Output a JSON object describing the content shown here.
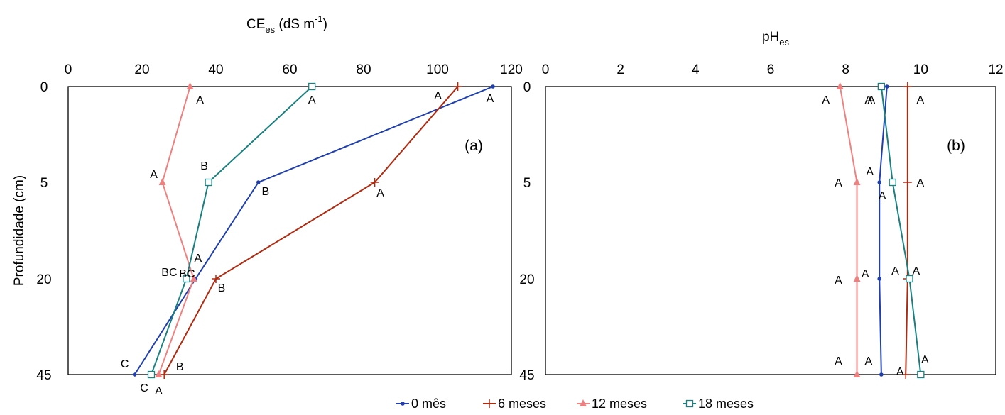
{
  "chart_data": [
    {
      "type": "line",
      "panel_label": "(a)",
      "title": "CE",
      "title_sub": "es",
      "title_unit": " (dS m",
      "title_sup": "-1",
      "title_close": ")",
      "ylabel": "Profundidade (cm)",
      "xlim": [
        0,
        120
      ],
      "xticks": [
        "0",
        "20",
        "40",
        "60",
        "80",
        "100",
        "120"
      ],
      "ylim": [
        0,
        45
      ],
      "yticks": [
        "0",
        "5",
        "20",
        "45"
      ],
      "y_positions": [
        0,
        5,
        20,
        45
      ],
      "orientation": "depth-profile",
      "series": [
        {
          "name": "0 mês",
          "color": "#1f3fb0",
          "marker": "dot",
          "x": [
            115,
            51.5,
            34.5,
            18
          ],
          "y": [
            0,
            5,
            20,
            45
          ],
          "labels": [
            "A",
            "B",
            "BC",
            "C"
          ]
        },
        {
          "name": "6 meses",
          "color": "#b02a10",
          "marker": "plus",
          "x": [
            105.5,
            83,
            40,
            26
          ],
          "y": [
            0,
            5,
            20,
            45
          ],
          "labels": [
            "A",
            "A",
            "B",
            "B"
          ]
        },
        {
          "name": "12 meses",
          "color": "#f08080",
          "marker": "triangle",
          "x": [
            33,
            25.5,
            34,
            24.5
          ],
          "y": [
            0,
            5,
            20,
            45
          ],
          "labels": [
            "A",
            "A",
            "A",
            "A"
          ]
        },
        {
          "name": "18 meses",
          "color": "#1a8080",
          "marker": "square",
          "x": [
            66,
            38,
            32,
            22.5
          ],
          "y": [
            0,
            5,
            20,
            45
          ],
          "labels": [
            "A",
            "B",
            "BC",
            "C"
          ]
        }
      ]
    },
    {
      "type": "line",
      "panel_label": "(b)",
      "title": "pH",
      "title_sub": "es",
      "xlim": [
        0,
        12
      ],
      "xticks": [
        "0",
        "2",
        "4",
        "6",
        "8",
        "10",
        "12"
      ],
      "ylim": [
        0,
        45
      ],
      "yticks": [
        "0",
        "5",
        "20",
        "45"
      ],
      "y_positions": [
        0,
        5,
        20,
        45
      ],
      "orientation": "depth-profile",
      "series": [
        {
          "name": "0 mês",
          "color": "#1f3fb0",
          "marker": "dot",
          "x": [
            9.1,
            8.9,
            8.9,
            8.95
          ],
          "y": [
            0,
            5,
            20,
            45
          ],
          "labels": [
            "A",
            "A",
            "A",
            "A"
          ]
        },
        {
          "name": "6 meses",
          "color": "#b02a10",
          "marker": "plus",
          "x": [
            9.65,
            9.65,
            9.65,
            9.6
          ],
          "y": [
            0,
            5,
            20,
            45
          ],
          "labels": [
            "A",
            "A",
            "A",
            "A"
          ]
        },
        {
          "name": "12 meses",
          "color": "#f08080",
          "marker": "triangle",
          "x": [
            7.85,
            8.3,
            8.3,
            8.3
          ],
          "y": [
            0,
            5,
            20,
            45
          ],
          "labels": [
            "A",
            "A",
            "A",
            "A"
          ]
        },
        {
          "name": "18 meses",
          "color": "#1a8080",
          "marker": "square",
          "x": [
            8.95,
            9.25,
            9.7,
            10.0
          ],
          "y": [
            0,
            5,
            20,
            45
          ],
          "labels": [
            "A",
            "A",
            "A",
            "A"
          ]
        }
      ]
    }
  ],
  "legend": [
    {
      "label": "0 mês",
      "color": "#1f3fb0",
      "marker": "dot"
    },
    {
      "label": "6 meses",
      "color": "#b02a10",
      "marker": "plus"
    },
    {
      "label": "12 meses",
      "color": "#f08080",
      "marker": "triangle"
    },
    {
      "label": "18 meses",
      "color": "#1a8080",
      "marker": "square"
    }
  ]
}
